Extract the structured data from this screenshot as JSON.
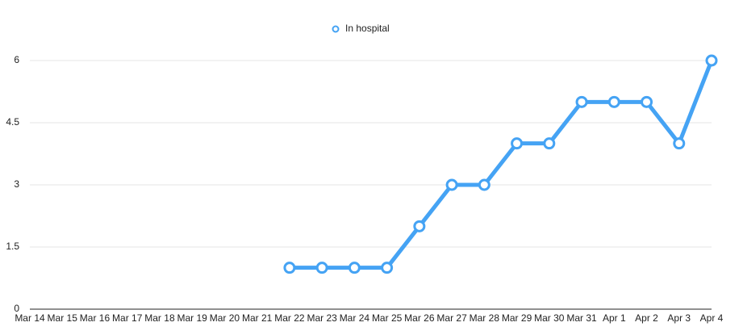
{
  "chart_data": {
    "type": "line",
    "categories": [
      "Mar 14",
      "Mar 15",
      "Mar 16",
      "Mar 17",
      "Mar 18",
      "Mar 19",
      "Mar 20",
      "Mar 21",
      "Mar 22",
      "Mar 23",
      "Mar 24",
      "Mar 25",
      "Mar 26",
      "Mar 27",
      "Mar 28",
      "Mar 29",
      "Mar 30",
      "Mar 31",
      "Apr 1",
      "Apr 2",
      "Apr 3",
      "Apr 4"
    ],
    "series": [
      {
        "name": "In hospital",
        "color": "#45a3f4",
        "values": [
          null,
          null,
          null,
          null,
          null,
          null,
          null,
          null,
          1,
          1,
          1,
          1,
          2,
          3,
          3,
          4,
          4,
          5,
          5,
          5,
          4,
          6
        ]
      }
    ],
    "ylim": [
      0,
      6
    ],
    "yticks": [
      0,
      1.5,
      3,
      4.5,
      6
    ],
    "grid": true,
    "legend": "top"
  }
}
